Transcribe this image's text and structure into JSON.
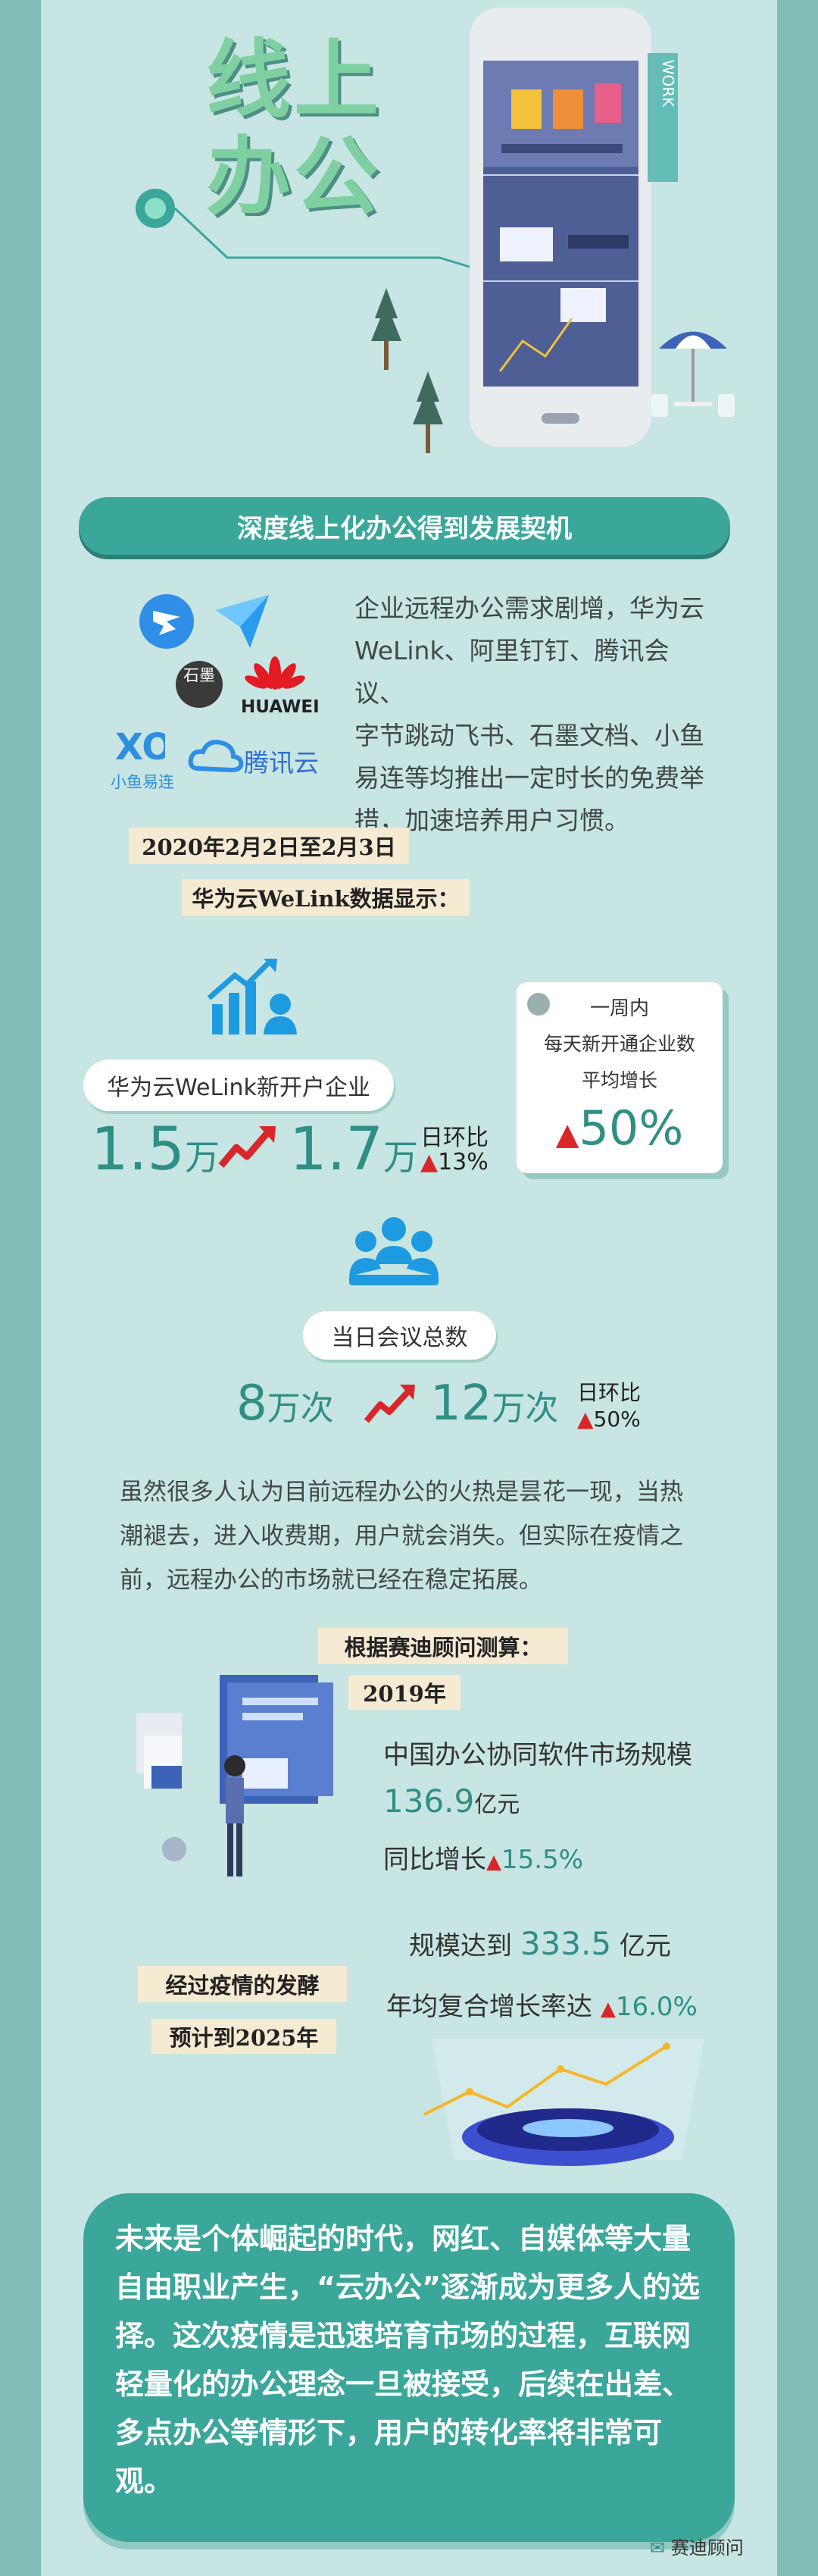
{
  "header": {
    "title_line1": "线上",
    "title_line2": "办公",
    "work_sign": "WORK"
  },
  "section1": {
    "ribbon": "深度线上化办公得到发展契机",
    "logos": {
      "shimo": "石墨",
      "huawei": "HUAWEI",
      "xiaoyu": "小鱼易连",
      "tencent": "腾讯云"
    },
    "paragraph_lines": [
      "企业远程办公需求剧增，华为云",
      "WeLink、阿里钉钉、腾讯会议、",
      "字节跳动飞书、石墨文档、小鱼",
      "易连等均推出一定时长的免费举",
      "措，加速培养用户习惯。"
    ]
  },
  "welink": {
    "date_tag": "2020年2月2日至2月3日",
    "caption": "华为云WeLink数据显示：",
    "new_users": {
      "label": "华为云WeLink新开户企业",
      "from": "1.5",
      "to": "1.7",
      "unit": "万",
      "ring_label": "日环比",
      "ring_value": "13%"
    },
    "week_card": {
      "line1": "一周内",
      "line2": "每天新开通企业数",
      "line3": "平均增长",
      "value": "50%"
    },
    "meetings": {
      "label": "当日会议总数",
      "from": "8",
      "to": "12",
      "unit": "万次",
      "ring_label": "日环比",
      "ring_value": "50%"
    }
  },
  "section2": {
    "paragraph_lines": [
      "虽然很多人认为目前远程办公的火热是昙花一现，当热",
      "潮褪去，进入收费期，用户就会消失。但实际在疫情之",
      "前，远程办公的市场就已经在稳定拓展。"
    ],
    "measure_tag": "根据赛迪顾问测算：",
    "year_tag": "2019年",
    "market_label": "中国办公协同软件市场规模",
    "market_value": "136.9",
    "market_unit": "亿元",
    "yoy_label": "同比增长",
    "yoy_value": "15.5%",
    "ferment_tag": "经过疫情的发酵",
    "forecast_tag": "预计到2025年",
    "scale_prefix": "规模达到",
    "scale_value": "333.5",
    "scale_unit": "亿元",
    "cagr_label": "年均复合增长率达",
    "cagr_value": "16.0%"
  },
  "final": {
    "text": "未来是个体崛起的时代，网红、自媒体等大量自由职业产生，“云办公”逐渐成为更多人的选择。这次疫情是迅速培育市场的过程，互联网轻量化的办公理念一旦被接受，后续在出差、多点办公等情形下，用户的转化率将非常可观。"
  },
  "watermark": "赛迪顾问",
  "colors": {
    "background": "#7fbdb6",
    "panel": "#c7e5e2",
    "accent": "#3aa79a",
    "up_red": "#d9262a",
    "cream": "#f5ead2"
  }
}
